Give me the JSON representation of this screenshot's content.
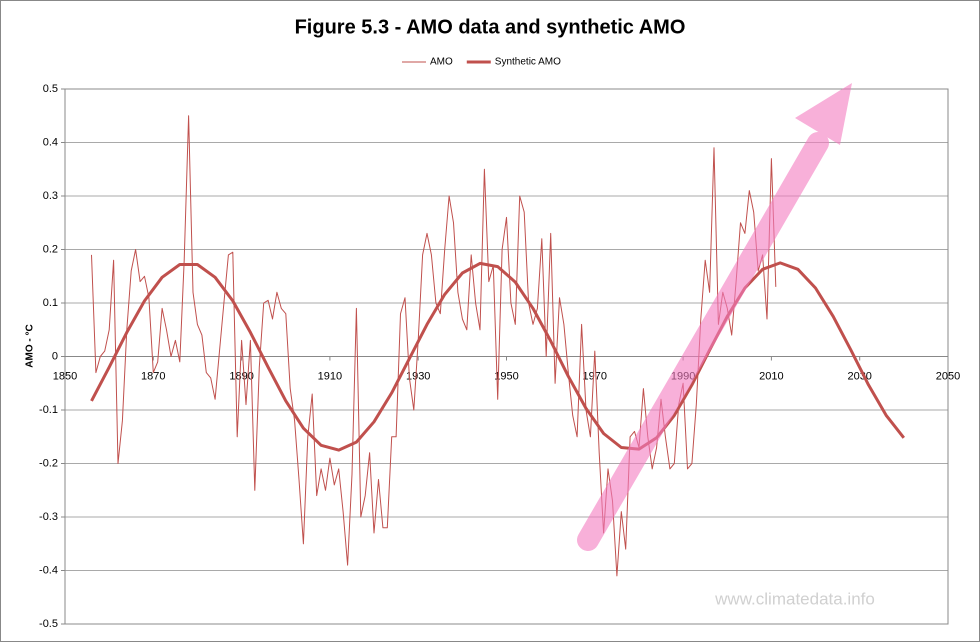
{
  "chart_data": {
    "type": "line",
    "title": "Figure 5.3 - AMO data and synthetic AMO",
    "y_label": "AMO - °C",
    "watermark": "www.climatedata.info",
    "xlim": [
      1850,
      2050
    ],
    "xticks": [
      1850,
      1870,
      1890,
      1910,
      1930,
      1950,
      1970,
      1990,
      2010,
      2030,
      2050
    ],
    "ylim": [
      -0.5,
      0.5
    ],
    "yticks": [
      -0.5,
      -0.4,
      -0.3,
      -0.2,
      -0.1,
      0,
      0.1,
      0.2,
      0.3,
      0.4,
      0.5
    ],
    "grid": true,
    "legend": "top",
    "series": [
      {
        "name": "AMO",
        "color": "#c0504d",
        "width": 1,
        "x": [
          1856,
          1857,
          1858,
          1859,
          1860,
          1861,
          1862,
          1863,
          1864,
          1865,
          1866,
          1867,
          1868,
          1869,
          1870,
          1871,
          1872,
          1873,
          1874,
          1875,
          1876,
          1877,
          1878,
          1879,
          1880,
          1881,
          1882,
          1883,
          1884,
          1885,
          1886,
          1887,
          1888,
          1889,
          1890,
          1891,
          1892,
          1893,
          1894,
          1895,
          1896,
          1897,
          1898,
          1899,
          1900,
          1901,
          1902,
          1903,
          1904,
          1905,
          1906,
          1907,
          1908,
          1909,
          1910,
          1911,
          1912,
          1913,
          1914,
          1915,
          1916,
          1917,
          1918,
          1919,
          1920,
          1921,
          1922,
          1923,
          1924,
          1925,
          1926,
          1927,
          1928,
          1929,
          1930,
          1931,
          1932,
          1933,
          1934,
          1935,
          1936,
          1937,
          1938,
          1939,
          1940,
          1941,
          1942,
          1943,
          1944,
          1945,
          1946,
          1947,
          1948,
          1949,
          1950,
          1951,
          1952,
          1953,
          1954,
          1955,
          1956,
          1957,
          1958,
          1959,
          1960,
          1961,
          1962,
          1963,
          1964,
          1965,
          1966,
          1967,
          1968,
          1969,
          1970,
          1971,
          1972,
          1973,
          1974,
          1975,
          1976,
          1977,
          1978,
          1979,
          1980,
          1981,
          1982,
          1983,
          1984,
          1985,
          1986,
          1987,
          1988,
          1989,
          1990,
          1991,
          1992,
          1993,
          1994,
          1995,
          1996,
          1997,
          1998,
          1999,
          2000,
          2001,
          2002,
          2003,
          2004,
          2005,
          2006,
          2007,
          2008,
          2009,
          2010,
          2011
        ],
        "values": [
          0.19,
          -0.03,
          0.0,
          0.01,
          0.05,
          0.18,
          -0.2,
          -0.12,
          0.05,
          0.16,
          0.2,
          0.14,
          0.15,
          0.11,
          -0.03,
          -0.01,
          0.09,
          0.05,
          0.0,
          0.03,
          -0.01,
          0.18,
          0.45,
          0.12,
          0.06,
          0.04,
          -0.03,
          -0.04,
          -0.08,
          0.01,
          0.1,
          0.19,
          0.195,
          -0.15,
          0.03,
          -0.09,
          0.03,
          -0.25,
          -0.02,
          0.1,
          0.105,
          0.07,
          0.12,
          0.09,
          0.08,
          -0.06,
          -0.12,
          -0.23,
          -0.35,
          -0.15,
          -0.07,
          -0.26,
          -0.21,
          -0.25,
          -0.19,
          -0.24,
          -0.21,
          -0.29,
          -0.39,
          -0.22,
          0.09,
          -0.3,
          -0.26,
          -0.18,
          -0.33,
          -0.23,
          -0.32,
          -0.32,
          -0.15,
          -0.15,
          0.08,
          0.11,
          -0.04,
          -0.1,
          0.03,
          0.19,
          0.23,
          0.19,
          0.1,
          0.08,
          0.2,
          0.3,
          0.25,
          0.12,
          0.07,
          0.05,
          0.19,
          0.1,
          0.05,
          0.35,
          0.14,
          0.17,
          -0.08,
          0.2,
          0.26,
          0.1,
          0.06,
          0.3,
          0.27,
          0.1,
          0.06,
          0.09,
          0.22,
          0.0,
          0.23,
          -0.05,
          0.11,
          0.06,
          -0.03,
          -0.11,
          -0.15,
          0.06,
          -0.1,
          -0.15,
          0.01,
          -0.18,
          -0.33,
          -0.21,
          -0.27,
          -0.41,
          -0.29,
          -0.36,
          -0.15,
          -0.14,
          -0.17,
          -0.06,
          -0.15,
          -0.21,
          -0.17,
          -0.08,
          -0.15,
          -0.21,
          -0.2,
          -0.09,
          -0.05,
          -0.21,
          -0.2,
          -0.09,
          0.07,
          0.18,
          0.12,
          0.39,
          0.06,
          0.12,
          0.09,
          0.04,
          0.14,
          0.25,
          0.23,
          0.31,
          0.27,
          0.16,
          0.19,
          0.07,
          0.37,
          0.13
        ]
      },
      {
        "name": "Synthetic AMO",
        "color": "#c0504d",
        "width": 3,
        "x": [
          1856,
          1860,
          1864,
          1868,
          1872,
          1876,
          1880,
          1884,
          1888,
          1892,
          1896,
          1900,
          1904,
          1908,
          1912,
          1916,
          1920,
          1924,
          1928,
          1932,
          1936,
          1940,
          1944,
          1948,
          1952,
          1956,
          1960,
          1964,
          1968,
          1972,
          1976,
          1980,
          1984,
          1988,
          1992,
          1996,
          2000,
          2004,
          2008,
          2012,
          2016,
          2020,
          2024,
          2028,
          2032,
          2036,
          2040
        ],
        "values": [
          -0.083,
          -0.02,
          0.045,
          0.104,
          0.148,
          0.172,
          0.172,
          0.148,
          0.104,
          0.045,
          -0.02,
          -0.083,
          -0.134,
          -0.166,
          -0.175,
          -0.16,
          -0.122,
          -0.068,
          -0.004,
          0.06,
          0.116,
          0.156,
          0.174,
          0.168,
          0.139,
          0.09,
          0.029,
          -0.037,
          -0.097,
          -0.144,
          -0.17,
          -0.173,
          -0.152,
          -0.11,
          -0.053,
          0.012,
          0.075,
          0.128,
          0.163,
          0.175,
          0.163,
          0.128,
          0.075,
          0.012,
          -0.053,
          -0.11,
          -0.152
        ]
      }
    ]
  }
}
